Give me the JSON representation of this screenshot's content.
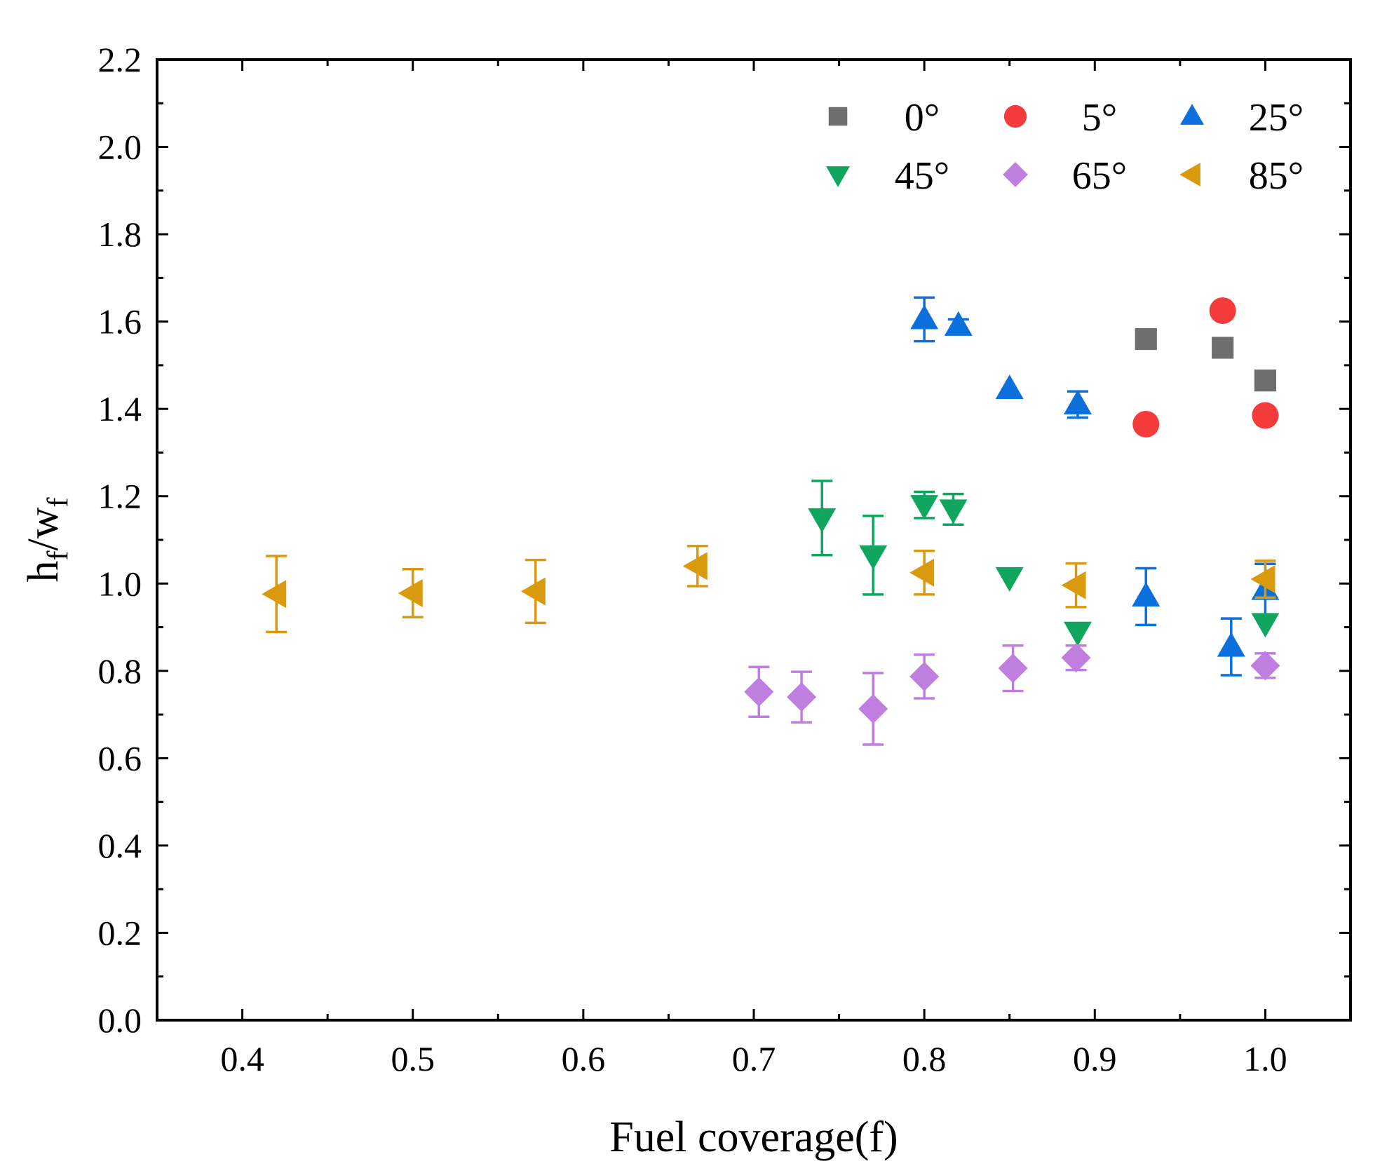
{
  "chart_data": {
    "type": "scatter",
    "xlabel": "Fuel coverage(f)",
    "ylabel": "h_f/w_f",
    "ylabel_parts": {
      "h": "h",
      "sub1": "f",
      "slash": "/",
      "w": "w",
      "sub2": "f"
    },
    "xlim": [
      0.35,
      1.05
    ],
    "ylim": [
      0.0,
      2.2
    ],
    "x_ticks": [
      "0.4",
      "0.5",
      "0.6",
      "0.7",
      "0.8",
      "0.9",
      "1.0"
    ],
    "y_ticks": [
      "0.0",
      "0.2",
      "0.4",
      "0.6",
      "0.8",
      "1.0",
      "1.2",
      "1.4",
      "1.6",
      "1.8",
      "2.0",
      "2.2"
    ],
    "legend_position": "top-right",
    "series": [
      {
        "name": "0°",
        "marker": "square",
        "color": "#6e6e6e",
        "points": [
          {
            "x": 0.93,
            "y": 1.56
          },
          {
            "x": 0.975,
            "y": 1.54
          },
          {
            "x": 1.0,
            "y": 1.465
          }
        ]
      },
      {
        "name": "5°",
        "marker": "circle",
        "color": "#f33b3b",
        "points": [
          {
            "x": 0.93,
            "y": 1.365
          },
          {
            "x": 0.975,
            "y": 1.625
          },
          {
            "x": 1.0,
            "y": 1.385
          }
        ]
      },
      {
        "name": "25°",
        "marker": "triangle-up",
        "color": "#0b6fdc",
        "points": [
          {
            "x": 0.8,
            "y": 1.605,
            "err": 0.05
          },
          {
            "x": 0.82,
            "y": 1.59,
            "err": 0.015
          },
          {
            "x": 0.85,
            "y": 1.445,
            "err": 0.0
          },
          {
            "x": 0.89,
            "y": 1.41,
            "err": 0.03
          },
          {
            "x": 0.93,
            "y": 0.97,
            "err": 0.065
          },
          {
            "x": 0.98,
            "y": 0.855,
            "err": 0.065
          },
          {
            "x": 1.0,
            "y": 0.985,
            "err": 0.06
          }
        ]
      },
      {
        "name": "45°",
        "marker": "triangle-down",
        "color": "#11a660",
        "points": [
          {
            "x": 0.74,
            "y": 1.15,
            "err": 0.085
          },
          {
            "x": 0.77,
            "y": 1.065,
            "err": 0.09
          },
          {
            "x": 0.8,
            "y": 1.18,
            "err": 0.03
          },
          {
            "x": 0.817,
            "y": 1.17,
            "err": 0.035
          },
          {
            "x": 0.85,
            "y": 1.015,
            "err": 0.0
          },
          {
            "x": 0.89,
            "y": 0.89,
            "err": 0.0
          },
          {
            "x": 1.0,
            "y": 0.91,
            "err": 0.0
          }
        ]
      },
      {
        "name": "65°",
        "marker": "diamond",
        "color": "#c07ee1",
        "points": [
          {
            "x": 0.703,
            "y": 0.752,
            "err": 0.057
          },
          {
            "x": 0.728,
            "y": 0.74,
            "err": 0.058
          },
          {
            "x": 0.77,
            "y": 0.713,
            "err": 0.082
          },
          {
            "x": 0.8,
            "y": 0.787,
            "err": 0.05
          },
          {
            "x": 0.852,
            "y": 0.806,
            "err": 0.052
          },
          {
            "x": 0.889,
            "y": 0.83,
            "err": 0.028
          },
          {
            "x": 1.0,
            "y": 0.812,
            "err": 0.028
          }
        ]
      },
      {
        "name": "85°",
        "marker": "triangle-left",
        "color": "#d99a0e",
        "points": [
          {
            "x": 0.42,
            "y": 0.976,
            "err": 0.087
          },
          {
            "x": 0.5,
            "y": 0.978,
            "err": 0.055
          },
          {
            "x": 0.572,
            "y": 0.982,
            "err": 0.072
          },
          {
            "x": 0.667,
            "y": 1.04,
            "err": 0.046
          },
          {
            "x": 0.8,
            "y": 1.025,
            "err": 0.05
          },
          {
            "x": 0.889,
            "y": 0.996,
            "err": 0.05
          },
          {
            "x": 1.0,
            "y": 1.01,
            "err": 0.042
          }
        ]
      }
    ]
  }
}
